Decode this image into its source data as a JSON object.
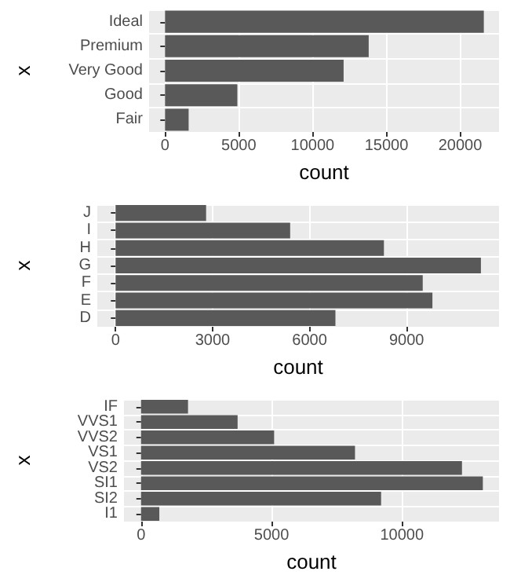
{
  "chart_data": [
    {
      "type": "bar",
      "orientation": "horizontal",
      "xlabel": "count",
      "ylabel": "x",
      "categories": [
        "Ideal",
        "Premium",
        "Very Good",
        "Good",
        "Fair"
      ],
      "series": [
        {
          "color": "#595959",
          "values": [
            21600,
            13800,
            12100,
            4900,
            1600
          ]
        }
      ],
      "xlim": [
        -1080,
        22630
      ],
      "xticks": [
        0,
        5000,
        10000,
        15000,
        20000
      ],
      "grid": true
    },
    {
      "type": "bar",
      "orientation": "horizontal",
      "xlabel": "count",
      "ylabel": "x",
      "categories": [
        "J",
        "I",
        "H",
        "G",
        "F",
        "E",
        "D"
      ],
      "series": [
        {
          "color": "#595959",
          "values": [
            2800,
            5400,
            8300,
            11300,
            9500,
            9800,
            6800
          ]
        }
      ],
      "xlim": [
        -565,
        11860
      ],
      "xticks": [
        0,
        3000,
        6000,
        9000
      ],
      "grid": true
    },
    {
      "type": "bar",
      "orientation": "horizontal",
      "xlabel": "count",
      "ylabel": "x",
      "categories": [
        "IF",
        "VVS1",
        "VVS2",
        "VS1",
        "VS2",
        "SI1",
        "SI2",
        "I1"
      ],
      "series": [
        {
          "color": "#595959",
          "values": [
            1800,
            3700,
            5100,
            8200,
            12300,
            13100,
            9200,
            700
          ]
        }
      ],
      "xlim": [
        -655,
        13720
      ],
      "xticks": [
        0,
        5000,
        10000
      ],
      "grid": true
    }
  ]
}
